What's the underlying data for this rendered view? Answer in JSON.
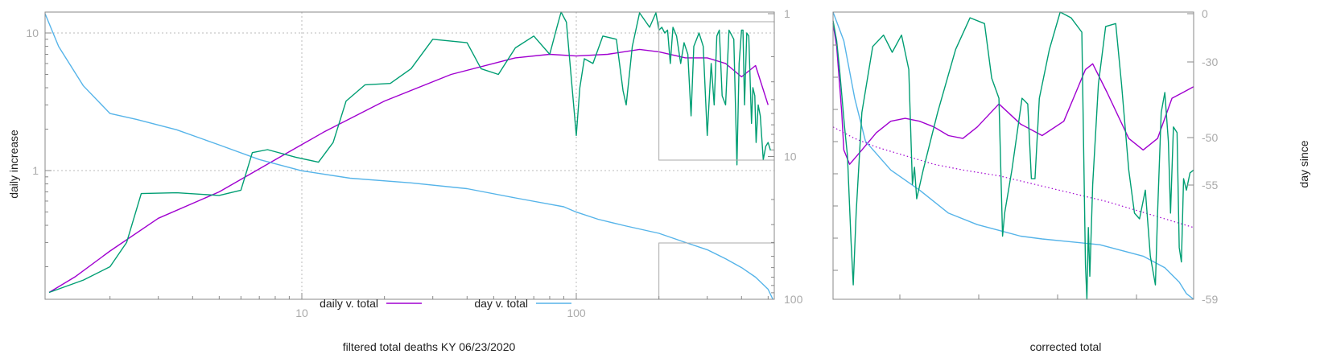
{
  "colors": {
    "daily": "#a000d0",
    "day": "#56b4e9",
    "green": "#009e73",
    "grid": "#bbbbbb",
    "frame": "#888888",
    "inset": "#aaaaaa"
  },
  "chart_data": [
    {
      "type": "line",
      "xlabel": "filtered total deaths KY 06/23/2020",
      "ylabel": "daily increase",
      "x_scale": "log",
      "y_scale": "log",
      "y2_scale": "log",
      "xlim": [
        1.15,
        520
      ],
      "ylim": [
        0.13,
        15
      ],
      "y2lim": [
        1,
        100
      ],
      "y2_reversed": true,
      "x_ticks": [
        "10",
        "100"
      ],
      "y_ticks": [
        "10",
        "1"
      ],
      "y2_ticks": [
        "1",
        "10",
        "100"
      ],
      "legend": {
        "position": "bottom-center",
        "entries": [
          "daily v. total",
          "day v. total"
        ]
      },
      "grid": true,
      "series": [
        {
          "name": "daily v. total",
          "axis": "y",
          "x": [
            1.2,
            1.5,
            2,
            3,
            5,
            8,
            12,
            20,
            35,
            60,
            80,
            100,
            130,
            170,
            200,
            250,
            300,
            350,
            400,
            450,
            500
          ],
          "y": [
            0.13,
            0.17,
            0.26,
            0.45,
            0.7,
            1.2,
            1.9,
            3.2,
            5.0,
            6.6,
            7.0,
            6.8,
            7.0,
            7.6,
            7.3,
            6.6,
            6.6,
            6.0,
            4.8,
            5.8,
            3.0
          ]
        },
        {
          "name": "day v. total",
          "axis": "y2",
          "x": [
            1.15,
            1.3,
            1.6,
            2.0,
            2.5,
            3.5,
            5,
            7,
            10,
            15,
            25,
            40,
            60,
            90,
            100,
            120,
            150,
            200,
            250,
            300,
            350,
            400,
            450,
            500,
            520
          ],
          "y": [
            1,
            1.7,
            3.2,
            5.0,
            5.5,
            6.5,
            8.3,
            10.5,
            12.6,
            14.2,
            15.3,
            16.8,
            19.5,
            22.5,
            24.5,
            27.5,
            30.5,
            34.5,
            40,
            45,
            52,
            60,
            70,
            85,
            100
          ]
        },
        {
          "name": "",
          "axis": "y",
          "x": [
            1.2,
            1.6,
            2.0,
            2.3,
            2.6,
            3.5,
            5,
            6,
            6.6,
            7.5,
            9.5,
            11.5,
            13,
            14.5,
            17,
            21,
            25,
            30,
            40,
            45,
            52,
            60,
            70,
            80,
            85,
            88,
            92,
            100,
            103,
            107,
            115,
            125,
            140,
            148,
            152,
            160,
            170,
            185,
            195,
            200,
            205,
            210,
            215,
            220,
            225,
            232,
            240,
            247,
            255,
            262,
            268,
            280,
            290,
            300,
            310,
            318,
            325,
            332,
            340,
            350,
            360,
            375,
            385,
            392,
            400,
            405,
            410,
            418,
            425,
            435,
            440,
            447,
            452,
            460,
            468,
            480,
            490,
            500,
            510
          ],
          "y": [
            0.13,
            0.16,
            0.2,
            0.3,
            0.68,
            0.69,
            0.66,
            0.72,
            1.35,
            1.42,
            1.25,
            1.15,
            1.6,
            3.2,
            4.2,
            4.3,
            5.5,
            9.0,
            8.5,
            5.5,
            5.0,
            7.8,
            9.5,
            7.0,
            11.0,
            14.5,
            12.0,
            1.8,
            4.0,
            6.5,
            6.0,
            9.5,
            9.0,
            3.8,
            3.0,
            8.0,
            14.0,
            11.0,
            14.0,
            10.5,
            11.0,
            10.0,
            10.5,
            6.0,
            11.0,
            9.5,
            6.0,
            8.5,
            7.0,
            2.5,
            8.0,
            10.0,
            8.0,
            1.8,
            6.0,
            3.0,
            9.5,
            10.5,
            3.5,
            3.0,
            10.5,
            9.0,
            1.1,
            6.0,
            10.5,
            10.5,
            3.0,
            10.0,
            9.5,
            2.2,
            4.0,
            3.5,
            1.6,
            3.0,
            2.5,
            1.2,
            1.5,
            1.6,
            1.4
          ]
        }
      ]
    },
    {
      "type": "line",
      "xlabel": "corrected total",
      "ylabel": "day since",
      "y2_ticks": [
        "0",
        "-30",
        "-50",
        "-55",
        "-59"
      ],
      "series": [
        {
          "name": "",
          "pts": [
            [
              0,
              96
            ],
            [
              5,
              88
            ],
            [
              12,
              65
            ],
            [
              15,
              52
            ],
            [
              23,
              47
            ],
            [
              40,
              52
            ],
            [
              60,
              58
            ],
            [
              80,
              62
            ],
            [
              100,
              63
            ],
            [
              120,
              62
            ],
            [
              140,
              60
            ],
            [
              160,
              57
            ],
            [
              180,
              56
            ],
            [
              200,
              60
            ],
            [
              230,
              68
            ],
            [
              260,
              61
            ],
            [
              290,
              57
            ],
            [
              320,
              62
            ],
            [
              350,
              80
            ],
            [
              360,
              82
            ],
            [
              380,
              72
            ],
            [
              410,
              56
            ],
            [
              430,
              52
            ],
            [
              450,
              56
            ],
            [
              470,
              70
            ],
            [
              485,
              72
            ],
            [
              500,
              74
            ]
          ]
        },
        {
          "name": "",
          "pts": [
            [
              0,
              100
            ],
            [
              15,
              90
            ],
            [
              30,
              70
            ],
            [
              45,
              55
            ],
            [
              80,
              45
            ],
            [
              120,
              38
            ],
            [
              160,
              30
            ],
            [
              200,
              26
            ],
            [
              230,
              24
            ],
            [
              260,
              22
            ],
            [
              290,
              21
            ],
            [
              330,
              20
            ],
            [
              370,
              19
            ],
            [
              400,
              17
            ],
            [
              430,
              15
            ],
            [
              460,
              11
            ],
            [
              480,
              6
            ],
            [
              490,
              2
            ],
            [
              500,
              0
            ]
          ]
        },
        {
          "name": "",
          "pts": [
            [
              0,
              60
            ],
            [
              30,
              56
            ],
            [
              60,
              53
            ],
            [
              100,
              50
            ],
            [
              140,
              47
            ],
            [
              180,
              45
            ],
            [
              230,
              43
            ],
            [
              280,
              40
            ],
            [
              330,
              37
            ],
            [
              380,
              34
            ],
            [
              420,
              31
            ],
            [
              460,
              28
            ],
            [
              500,
              25
            ]
          ]
        },
        {
          "name": "",
          "pts": [
            [
              0,
              97
            ],
            [
              5,
              90
            ],
            [
              9,
              80
            ],
            [
              16,
              60
            ],
            [
              20,
              50
            ],
            [
              25,
              20
            ],
            [
              28,
              5
            ],
            [
              32,
              30
            ],
            [
              40,
              65
            ],
            [
              55,
              88
            ],
            [
              70,
              92
            ],
            [
              82,
              86
            ],
            [
              95,
              92
            ],
            [
              105,
              80
            ],
            [
              110,
              40
            ],
            [
              113,
              46
            ],
            [
              116,
              35
            ],
            [
              125,
              45
            ],
            [
              145,
              65
            ],
            [
              170,
              87
            ],
            [
              190,
              98
            ],
            [
              210,
              96
            ],
            [
              220,
              77
            ],
            [
              230,
              70
            ],
            [
              235,
              22
            ],
            [
              238,
              30
            ],
            [
              248,
              45
            ],
            [
              262,
              70
            ],
            [
              270,
              68
            ],
            [
              275,
              42
            ],
            [
              280,
              42
            ],
            [
              286,
              70
            ],
            [
              300,
              87
            ],
            [
              315,
              100
            ],
            [
              330,
              98
            ],
            [
              345,
              93
            ],
            [
              350,
              12
            ],
            [
              352,
              0
            ],
            [
              354,
              25
            ],
            [
              356,
              8
            ],
            [
              360,
              40
            ],
            [
              368,
              75
            ],
            [
              378,
              95
            ],
            [
              392,
              96
            ],
            [
              400,
              75
            ],
            [
              410,
              45
            ],
            [
              418,
              30
            ],
            [
              425,
              28
            ],
            [
              433,
              38
            ],
            [
              440,
              15
            ],
            [
              447,
              5
            ],
            [
              450,
              30
            ],
            [
              455,
              65
            ],
            [
              460,
              72
            ],
            [
              465,
              55
            ],
            [
              468,
              30
            ],
            [
              472,
              60
            ],
            [
              477,
              58
            ],
            [
              480,
              18
            ],
            [
              483,
              13
            ],
            [
              486,
              42
            ],
            [
              490,
              38
            ],
            [
              495,
              44
            ],
            [
              500,
              45
            ]
          ]
        }
      ]
    }
  ]
}
